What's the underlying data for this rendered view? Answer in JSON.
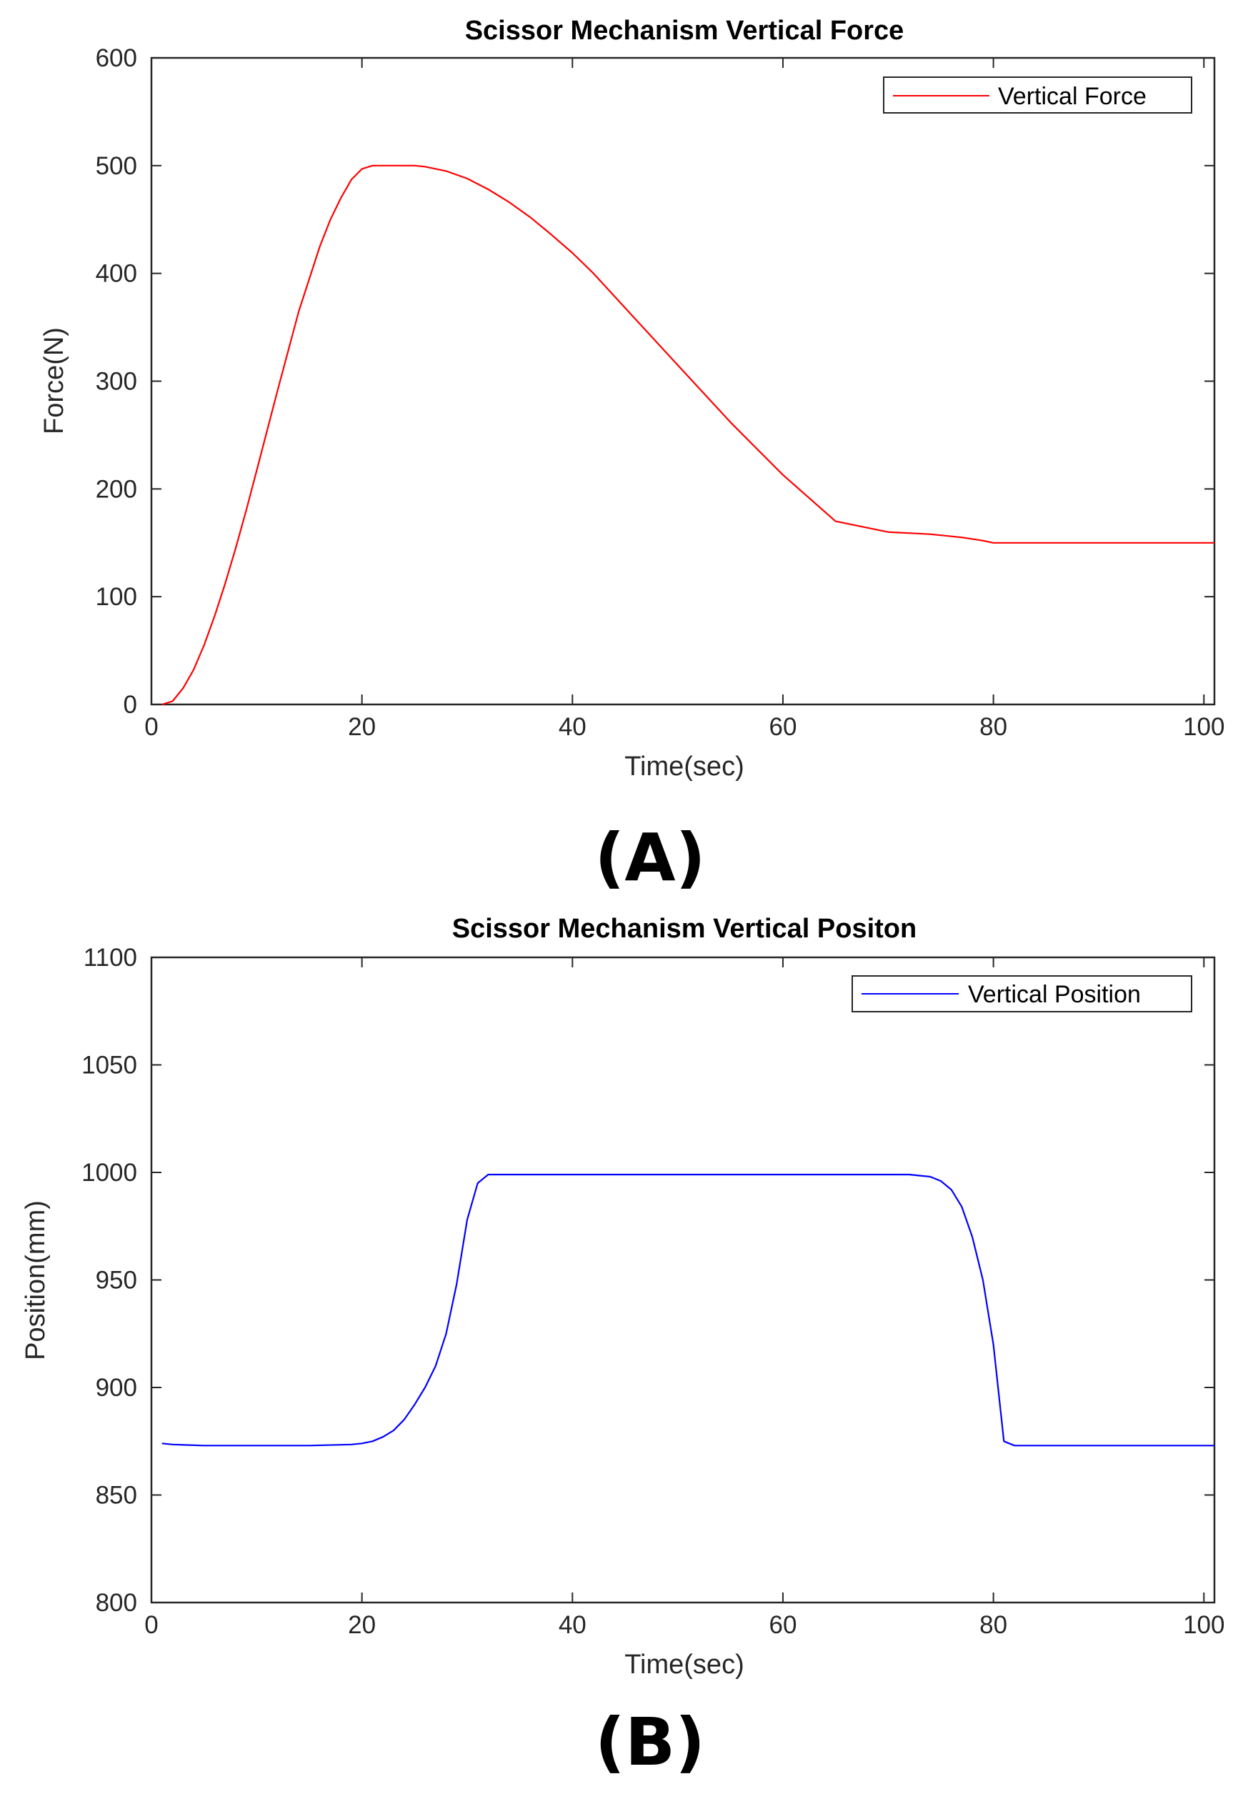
{
  "chart_data": [
    {
      "type": "line",
      "title": "Scissor Mechanism Vertical Force",
      "xlabel": "Time(sec)",
      "ylabel": "Force(N)",
      "xlim": [
        0,
        101
      ],
      "ylim": [
        0,
        600
      ],
      "xticks": [
        0,
        20,
        40,
        60,
        80,
        100
      ],
      "yticks": [
        0,
        100,
        200,
        300,
        400,
        500,
        600
      ],
      "grid": false,
      "legend_position": "top-right",
      "panel_label": "(A)",
      "series": [
        {
          "name": "Vertical Force",
          "color": "#ff0000",
          "x": [
            1,
            2,
            3,
            4,
            5,
            6,
            7,
            8,
            9,
            10,
            12,
            14,
            16,
            17,
            18,
            19,
            20,
            21,
            22,
            23,
            24,
            25,
            26,
            28,
            30,
            32,
            34,
            36,
            38,
            40,
            42,
            45,
            50,
            55,
            60,
            65,
            70,
            74,
            77,
            79,
            80,
            81,
            85,
            90,
            95,
            101
          ],
          "y": [
            0,
            3,
            15,
            32,
            55,
            82,
            112,
            145,
            180,
            217,
            292,
            365,
            425,
            450,
            470,
            487,
            497,
            500,
            500,
            500,
            500,
            500,
            499,
            495,
            488,
            478,
            466,
            452,
            436,
            419,
            400,
            368,
            315,
            262,
            213,
            170,
            160,
            158,
            155,
            152,
            150,
            150,
            150,
            150,
            150,
            150
          ]
        }
      ]
    },
    {
      "type": "line",
      "title": "Scissor Mechanism Vertical Positon",
      "xlabel": "Time(sec)",
      "ylabel": "Position(mm)",
      "xlim": [
        0,
        101
      ],
      "ylim": [
        800,
        1100
      ],
      "xticks": [
        0,
        20,
        40,
        60,
        80,
        100
      ],
      "yticks": [
        800,
        850,
        900,
        950,
        1000,
        1050,
        1100
      ],
      "grid": false,
      "legend_position": "top-right",
      "panel_label": "(B)",
      "series": [
        {
          "name": "Vertical Position",
          "color": "#0000ff",
          "x": [
            1,
            2,
            5,
            10,
            15,
            19,
            20,
            21,
            22,
            23,
            24,
            25,
            26,
            27,
            28,
            29,
            30,
            31,
            32,
            33,
            35,
            40,
            50,
            60,
            70,
            72,
            74,
            75,
            76,
            77,
            78,
            79,
            80,
            81,
            82,
            83,
            85,
            90,
            95,
            101
          ],
          "y": [
            874,
            873.5,
            873,
            873,
            873,
            873.5,
            874,
            875,
            877,
            880,
            885,
            892,
            900,
            910,
            925,
            948,
            978,
            995,
            999,
            999,
            999,
            999,
            999,
            999,
            999,
            999,
            998,
            996,
            992,
            984,
            970,
            950,
            920,
            875,
            873,
            873,
            873,
            873,
            873,
            873
          ]
        }
      ]
    }
  ]
}
